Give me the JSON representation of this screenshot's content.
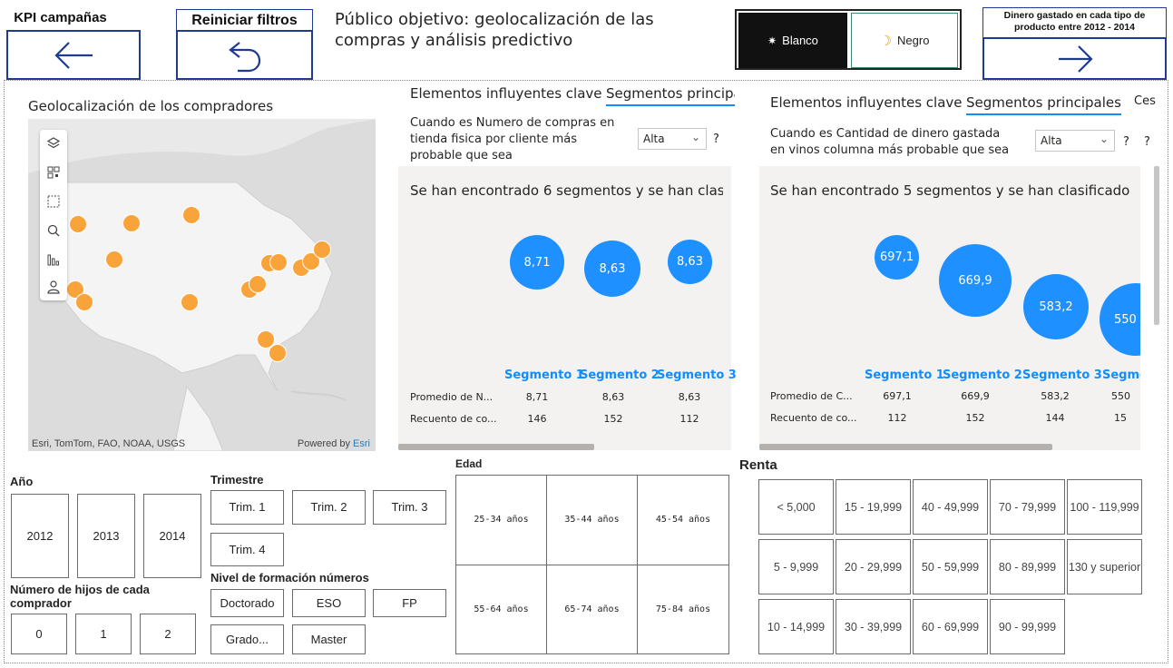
{
  "nav": {
    "kpi_label": "KPI campañas",
    "reset_label": "Reiniciar filtros",
    "next_label": "Dinero gastado en cada tipo de producto entre 2012 - 2014"
  },
  "page_title": "Público objetivo: geolocalización de las compras y análisis predictivo",
  "theme": {
    "light_label": "Blanco",
    "dark_label": "Negro",
    "light_icon": "sun-icon",
    "dark_icon": "moon-icon"
  },
  "map": {
    "title": "Geolocalización de los compradores",
    "attribution": "Esri, TomTom, FAO, NOAA, USGS",
    "powered_by": "Powered by",
    "esri": "Esri",
    "pin_color": "#f9a43a",
    "tools": [
      "layers-icon",
      "qr-select-icon",
      "rect-select-icon",
      "search-icon",
      "bar-chart-icon",
      "person-icon"
    ]
  },
  "ki_left": {
    "tab1": "Elementos influyentes clave",
    "tab2": "Segmentos principa",
    "question": "Cuando es Numero de compras en tienda fisica por cliente más probable que sea",
    "dropdown": "Alta",
    "help": "?",
    "segments_heading": "Se han encontrado 6 segmentos y se han clasi...",
    "bubbles": [
      "8,71",
      "8,63",
      "8,63"
    ],
    "segment_labels": [
      "Segmento 1",
      "Segmento 2",
      "Segmento 3"
    ],
    "row1_label": "Promedio de N...",
    "row1": [
      "8,71",
      "8,63",
      "8,63"
    ],
    "row2_label": "Recuento de co...",
    "row2": [
      "146",
      "152",
      "112"
    ]
  },
  "ki_right": {
    "tab1": "Elementos influyentes clave",
    "tab2": "Segmentos principales",
    "tab3": "Ces",
    "question": "Cuando es Cantidad de dinero gastada en vinos columna más probable que sea",
    "dropdown": "Alta",
    "help1": "?",
    "help2": "?",
    "segments_heading": "Se han encontrado 5 segmentos y se han clasificado p...",
    "bubbles": [
      "697,1",
      "669,9",
      "583,2",
      "550"
    ],
    "segment_labels": [
      "Segmento 1",
      "Segmento 2",
      "Segmento 3",
      "Segme"
    ],
    "row1_label": "Promedio de C...",
    "row1": [
      "697,1",
      "669,9",
      "583,2",
      "550"
    ],
    "row2_label": "Recuento de co...",
    "row2": [
      "112",
      "152",
      "144",
      "15"
    ]
  },
  "slicers": {
    "year_title": "Año",
    "years": [
      "2012",
      "2013",
      "2014"
    ],
    "children_title": "Número de hijos de cada comprador",
    "children": [
      "0",
      "1",
      "2"
    ],
    "quarter_title": "Trimestre",
    "quarters": [
      "Trim. 1",
      "Trim. 2",
      "Trim. 3",
      "Trim. 4"
    ],
    "education_title": "Nivel de formación números",
    "education": [
      "Doctorado",
      "ESO",
      "FP",
      "Grado...",
      "Master"
    ],
    "age_title": "Edad",
    "ages": [
      "25-34 años",
      "35-44 años",
      "45-54 años",
      "55-64 años",
      "65-74 años",
      "75-84 años"
    ],
    "income_title": "Renta",
    "incomes": [
      "< 5,000",
      "15 - 19,999",
      "40 - 49,999",
      "70 - 79,999",
      "100 - 119,999",
      "5 - 9,999",
      "20 - 29,999",
      "50 - 59,999",
      "80 - 89,999",
      "130 y superior",
      "10 - 14,999",
      "30 - 39,999",
      "60 - 69,999",
      "90 - 99,999"
    ]
  }
}
